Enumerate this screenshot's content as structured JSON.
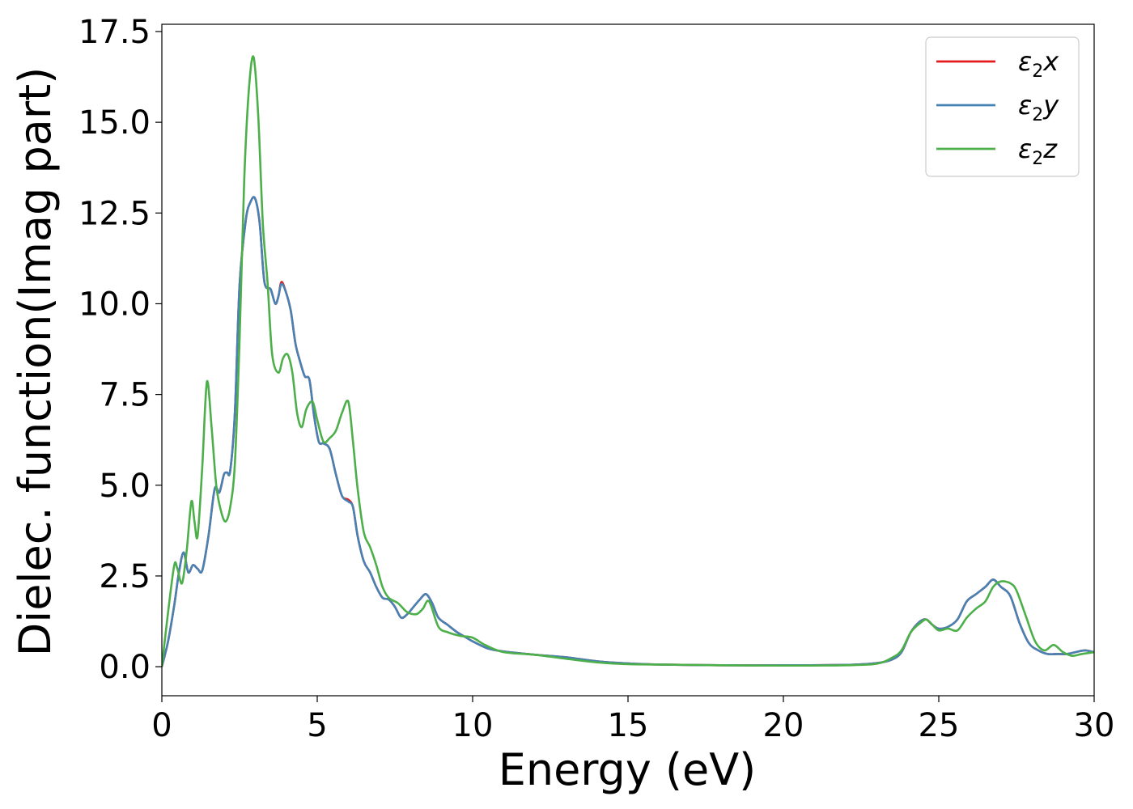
{
  "chart_data": {
    "type": "line",
    "title": "",
    "xlabel": "Energy (eV)",
    "ylabel": "Dielec. function(Imag part)",
    "xlim": [
      0,
      30
    ],
    "ylim": [
      -0.8,
      17.7
    ],
    "xticks": [
      0,
      5,
      10,
      15,
      20,
      25,
      30
    ],
    "xtick_labels": [
      "0",
      "5",
      "10",
      "15",
      "20",
      "25",
      "30"
    ],
    "yticks": [
      0.0,
      2.5,
      5.0,
      7.5,
      10.0,
      12.5,
      15.0,
      17.5
    ],
    "ytick_labels": [
      "0.0",
      "2.5",
      "5.0",
      "7.5",
      "10.0",
      "12.5",
      "15.0",
      "17.5"
    ],
    "grid": false,
    "legend_position": "top-right",
    "series": [
      {
        "name": "ε₂x",
        "legend_base": "ε",
        "legend_sub": "2",
        "legend_suffix": "x",
        "color": "#e41a1c",
        "x": [
          0,
          0.2,
          0.4,
          0.55,
          0.7,
          0.85,
          1.0,
          1.15,
          1.3,
          1.5,
          1.7,
          1.85,
          2.0,
          2.1,
          2.2,
          2.35,
          2.5,
          2.7,
          2.85,
          3.0,
          3.15,
          3.3,
          3.5,
          3.65,
          3.75,
          3.85,
          4.0,
          4.15,
          4.3,
          4.45,
          4.6,
          4.75,
          4.9,
          5.05,
          5.2,
          5.4,
          5.6,
          5.8,
          6.0,
          6.15,
          6.3,
          6.5,
          6.7,
          6.9,
          7.1,
          7.3,
          7.5,
          7.7,
          7.9,
          8.1,
          8.3,
          8.5,
          8.7,
          8.9,
          9.2,
          9.5,
          9.8,
          10.0,
          10.5,
          11.0,
          12.0,
          13.0,
          14.0,
          15.0,
          16.0,
          18.0,
          20.0,
          22.0,
          23.0,
          23.5,
          23.8,
          24.1,
          24.4,
          24.6,
          24.8,
          25.0,
          25.3,
          25.6,
          25.9,
          26.2,
          26.5,
          26.75,
          27.0,
          27.3,
          27.6,
          27.9,
          28.2,
          28.5,
          28.8,
          29.1,
          29.4,
          29.7,
          30.0
        ],
        "values": [
          0.0,
          0.7,
          1.7,
          2.6,
          3.15,
          2.6,
          2.8,
          2.7,
          2.65,
          3.6,
          4.9,
          4.8,
          5.3,
          5.35,
          5.4,
          7.0,
          10.5,
          12.3,
          12.8,
          12.9,
          12.2,
          10.6,
          10.4,
          10.0,
          10.2,
          10.6,
          10.3,
          9.8,
          8.9,
          8.4,
          8.0,
          7.9,
          6.9,
          6.2,
          6.15,
          6.0,
          5.3,
          4.7,
          4.6,
          4.4,
          3.6,
          2.9,
          2.6,
          2.2,
          1.9,
          1.85,
          1.65,
          1.35,
          1.45,
          1.65,
          1.85,
          2.0,
          1.75,
          1.35,
          1.15,
          0.95,
          0.8,
          0.7,
          0.5,
          0.42,
          0.33,
          0.26,
          0.15,
          0.09,
          0.06,
          0.04,
          0.04,
          0.05,
          0.1,
          0.2,
          0.4,
          0.95,
          1.25,
          1.3,
          1.15,
          1.05,
          1.1,
          1.3,
          1.8,
          2.0,
          2.2,
          2.4,
          2.2,
          1.95,
          1.2,
          0.65,
          0.45,
          0.35,
          0.35,
          0.35,
          0.4,
          0.45,
          0.4
        ]
      },
      {
        "name": "ε₂y",
        "legend_base": "ε",
        "legend_sub": "2",
        "legend_suffix": "y",
        "color": "#4682b4",
        "x": [
          0,
          0.2,
          0.4,
          0.55,
          0.7,
          0.85,
          1.0,
          1.15,
          1.3,
          1.5,
          1.7,
          1.85,
          2.0,
          2.1,
          2.2,
          2.35,
          2.5,
          2.7,
          2.85,
          3.0,
          3.15,
          3.3,
          3.5,
          3.65,
          3.75,
          3.85,
          4.0,
          4.15,
          4.3,
          4.45,
          4.6,
          4.75,
          4.9,
          5.05,
          5.2,
          5.4,
          5.6,
          5.8,
          6.0,
          6.15,
          6.3,
          6.5,
          6.7,
          6.9,
          7.1,
          7.3,
          7.5,
          7.7,
          7.9,
          8.1,
          8.3,
          8.5,
          8.7,
          8.9,
          9.2,
          9.5,
          9.8,
          10.0,
          10.5,
          11.0,
          12.0,
          13.0,
          14.0,
          15.0,
          16.0,
          18.0,
          20.0,
          22.0,
          23.0,
          23.5,
          23.8,
          24.1,
          24.4,
          24.6,
          24.8,
          25.0,
          25.3,
          25.6,
          25.9,
          26.2,
          26.5,
          26.75,
          27.0,
          27.3,
          27.6,
          27.9,
          28.2,
          28.5,
          28.8,
          29.1,
          29.4,
          29.7,
          30.0
        ],
        "values": [
          0.0,
          0.7,
          1.7,
          2.6,
          3.15,
          2.6,
          2.8,
          2.7,
          2.65,
          3.6,
          4.9,
          4.8,
          5.3,
          5.35,
          5.4,
          7.0,
          10.5,
          12.3,
          12.8,
          12.9,
          12.2,
          10.6,
          10.4,
          10.0,
          10.2,
          10.55,
          10.3,
          9.8,
          8.9,
          8.4,
          8.0,
          7.9,
          6.9,
          6.2,
          6.15,
          6.0,
          5.3,
          4.7,
          4.55,
          4.4,
          3.6,
          2.9,
          2.6,
          2.2,
          1.9,
          1.85,
          1.65,
          1.35,
          1.45,
          1.65,
          1.85,
          2.0,
          1.75,
          1.35,
          1.15,
          0.95,
          0.8,
          0.7,
          0.5,
          0.42,
          0.33,
          0.26,
          0.15,
          0.09,
          0.06,
          0.04,
          0.04,
          0.05,
          0.1,
          0.2,
          0.4,
          0.95,
          1.25,
          1.3,
          1.15,
          1.05,
          1.1,
          1.3,
          1.8,
          2.0,
          2.2,
          2.4,
          2.2,
          1.95,
          1.2,
          0.65,
          0.45,
          0.35,
          0.35,
          0.35,
          0.4,
          0.45,
          0.4
        ]
      },
      {
        "name": "ε₂z",
        "legend_base": "ε",
        "legend_sub": "2",
        "legend_suffix": "z",
        "color": "#4daf4a",
        "x": [
          0,
          0.2,
          0.4,
          0.5,
          0.65,
          0.8,
          0.95,
          1.05,
          1.15,
          1.3,
          1.45,
          1.6,
          1.75,
          1.9,
          2.05,
          2.2,
          2.35,
          2.5,
          2.65,
          2.8,
          2.95,
          3.1,
          3.25,
          3.4,
          3.55,
          3.75,
          3.9,
          4.05,
          4.2,
          4.35,
          4.5,
          4.65,
          4.85,
          5.0,
          5.2,
          5.4,
          5.6,
          5.8,
          6.0,
          6.15,
          6.3,
          6.5,
          6.7,
          6.9,
          7.1,
          7.3,
          7.6,
          7.9,
          8.2,
          8.4,
          8.6,
          8.9,
          9.2,
          9.6,
          10.0,
          10.4,
          11.0,
          12.0,
          13.0,
          14.0,
          15.0,
          16.0,
          18.0,
          20.0,
          22.0,
          23.0,
          23.5,
          23.8,
          24.1,
          24.4,
          24.6,
          24.8,
          25.0,
          25.3,
          25.6,
          25.9,
          26.2,
          26.5,
          26.75,
          27.0,
          27.3,
          27.5,
          27.8,
          28.1,
          28.4,
          28.7,
          29.0,
          29.3,
          29.6,
          30.0
        ],
        "values": [
          0.0,
          1.5,
          2.8,
          2.7,
          2.3,
          3.2,
          4.55,
          4.0,
          3.6,
          5.5,
          7.85,
          6.6,
          5.0,
          4.3,
          4.0,
          4.4,
          5.6,
          9.0,
          13.4,
          15.9,
          16.8,
          15.2,
          12.2,
          10.6,
          8.6,
          8.1,
          8.5,
          8.6,
          8.1,
          7.0,
          6.6,
          7.1,
          7.3,
          6.8,
          6.2,
          6.3,
          6.5,
          7.0,
          7.3,
          6.2,
          4.9,
          3.7,
          3.3,
          2.8,
          2.2,
          1.9,
          1.75,
          1.5,
          1.45,
          1.6,
          1.8,
          1.1,
          0.95,
          0.85,
          0.8,
          0.6,
          0.4,
          0.33,
          0.22,
          0.12,
          0.07,
          0.06,
          0.04,
          0.03,
          0.04,
          0.08,
          0.25,
          0.45,
          0.95,
          1.2,
          1.3,
          1.15,
          1.0,
          1.05,
          1.0,
          1.35,
          1.6,
          1.8,
          2.2,
          2.35,
          2.3,
          2.1,
          1.4,
          0.7,
          0.45,
          0.6,
          0.4,
          0.3,
          0.35,
          0.4
        ]
      }
    ]
  }
}
